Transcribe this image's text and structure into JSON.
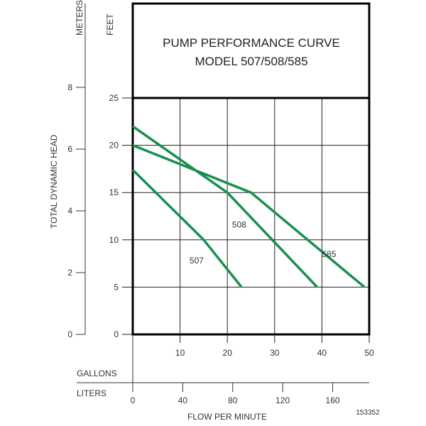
{
  "chart_data": {
    "type": "line",
    "title": "PUMP PERFORMANCE CURVE",
    "subtitle": "MODEL 507/508/585",
    "ylabel": "TOTAL DYNAMIC HEAD",
    "y_units_left": "METERS",
    "y_units_right": "FEET",
    "xlabel": "FLOW PER MINUTE",
    "x_units_top": "GALLONS",
    "x_units_bottom": "LITERS",
    "code": "153352",
    "xlim": [
      0,
      50
    ],
    "ylim": [
      0,
      25
    ],
    "feet_ticks": [
      "0",
      "5",
      "10",
      "15",
      "20",
      "25"
    ],
    "meter_ticks": [
      "0",
      "2",
      "4",
      "6",
      "8"
    ],
    "gallon_ticks": [
      "10",
      "20",
      "30",
      "40",
      "50"
    ],
    "liter_ticks": [
      "0",
      "40",
      "80",
      "120",
      "160"
    ],
    "grid": true,
    "line_color": "#1a8f4e",
    "series": [
      {
        "name": "507",
        "points": [
          [
            0,
            17.4
          ],
          [
            15,
            10
          ],
          [
            23,
            5
          ]
        ]
      },
      {
        "name": "508",
        "points": [
          [
            0,
            22
          ],
          [
            20,
            15
          ],
          [
            39,
            5
          ]
        ]
      },
      {
        "name": "585",
        "points": [
          [
            0,
            20
          ],
          [
            25,
            15
          ],
          [
            49,
            5
          ]
        ]
      }
    ],
    "label_positions": [
      [
        13.5,
        7.5
      ],
      [
        22.5,
        11.3
      ],
      [
        41.5,
        8.2
      ]
    ]
  }
}
